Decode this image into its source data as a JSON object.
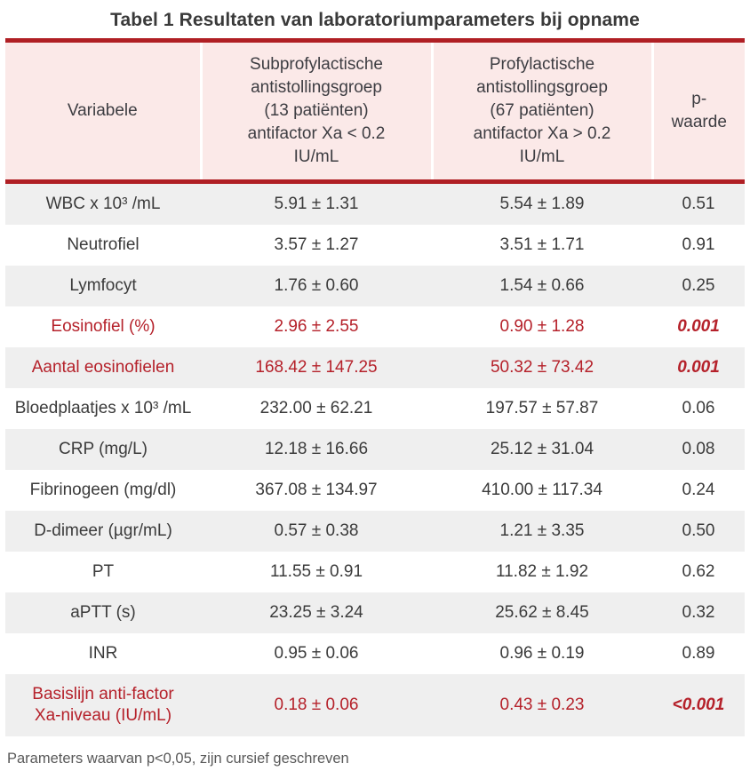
{
  "title": "Tabel 1 Resultaten van laboratoriumparameters bij opname",
  "colors": {
    "rule_red": "#b01f24",
    "header_pink": "#fbe9e8",
    "stripe_gray": "#efefef",
    "text_dark": "#3b3b3b",
    "highlight_red": "#b5212a",
    "footnote_gray": "#595959"
  },
  "table": {
    "headers": [
      "Variabele",
      "Subprofylactische\nantistollingsgroep\n(13 patiënten)\nantifactor Xa < 0.2\nIU/mL",
      "Profylactische\nantistollingsgroep\n(67 patiënten)\nantifactor Xa > 0.2\nIU/mL",
      "p-\nwaarde"
    ],
    "rows": [
      {
        "variable": "WBC x 10³ /mL",
        "group1": "5.91 ± 1.31",
        "group2": "5.54 ± 1.89",
        "p": "0.51",
        "highlight": false
      },
      {
        "variable": "Neutrofiel",
        "group1": "3.57 ± 1.27",
        "group2": "3.51 ± 1.71",
        "p": "0.91",
        "highlight": false
      },
      {
        "variable": "Lymfocyt",
        "group1": "1.76 ± 0.60",
        "group2": "1.54 ± 0.66",
        "p": "0.25",
        "highlight": false
      },
      {
        "variable": "Eosinofiel (%)",
        "group1": "2.96 ± 2.55",
        "group2": "0.90 ± 1.28",
        "p": "0.001",
        "highlight": true
      },
      {
        "variable": "Aantal eosinofielen",
        "group1": "168.42 ± 147.25",
        "group2": "50.32 ± 73.42",
        "p": "0.001",
        "highlight": true
      },
      {
        "variable": "Bloedplaatjes x 10³ /mL",
        "group1": "232.00 ± 62.21",
        "group2": "197.57 ± 57.87",
        "p": "0.06",
        "highlight": false
      },
      {
        "variable": "CRP (mg/L)",
        "group1": "12.18 ± 16.66",
        "group2": "25.12 ± 31.04",
        "p": "0.08",
        "highlight": false
      },
      {
        "variable": "Fibrinogeen (mg/dl)",
        "group1": "367.08 ± 134.97",
        "group2": "410.00 ± 117.34",
        "p": "0.24",
        "highlight": false
      },
      {
        "variable": "D-dimeer (µgr/mL)",
        "group1": "0.57 ± 0.38",
        "group2": "1.21 ± 3.35",
        "p": "0.50",
        "highlight": false
      },
      {
        "variable": "PT",
        "group1": "11.55 ± 0.91",
        "group2": "11.82 ± 1.92",
        "p": "0.62",
        "highlight": false
      },
      {
        "variable": "aPTT (s)",
        "group1": "23.25 ± 3.24",
        "group2": "25.62 ± 8.45",
        "p": "0.32",
        "highlight": false
      },
      {
        "variable": "INR",
        "group1": "0.95 ± 0.06",
        "group2": "0.96 ± 0.19",
        "p": "0.89",
        "highlight": false
      },
      {
        "variable": "Basislijn anti-factor\nXa-niveau (IU/mL)",
        "group1": "0.18 ± 0.06",
        "group2": "0.43 ± 0.23",
        "p": "<0.001",
        "highlight": true
      }
    ]
  },
  "footnote": "Parameters waarvan p<0,05, zijn cursief geschreven"
}
